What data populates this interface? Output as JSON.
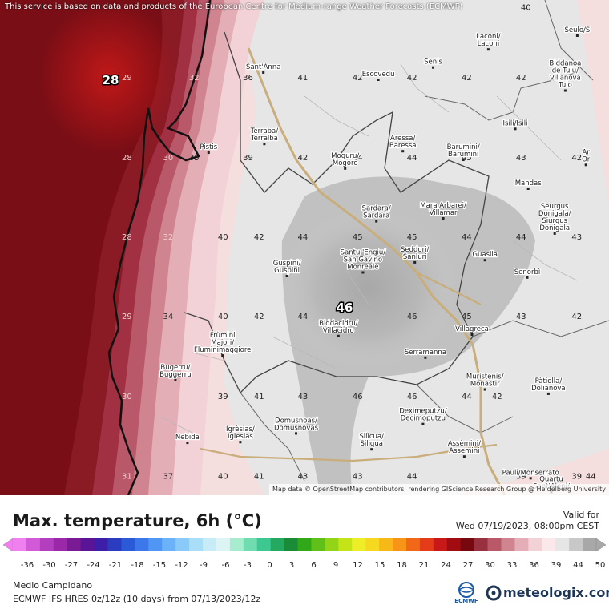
{
  "notice": "This service is based on data and products of the European Centre for Medium-range Weather Forecasts (ECMWF)",
  "attribution": "Map data © OpenStreetMap contributors, rendering GIScience Research Group @ Heidelberg University",
  "title": "Max. temperature, 6h (°C)",
  "valid_label": "Valid for",
  "valid_time": "Wed 07/19/2023, 08:00pm CEST",
  "region": "Medio Campidano",
  "model_info": "ECMWF IFS HRES 0z/12z (10 days) from 07/13/2023/12z",
  "ecmwf_logo_text": "ECMWF",
  "brand": "meteologix.com",
  "extremes": {
    "min_label": "28",
    "max_label": "46"
  },
  "places": [
    {
      "lines": [
        "Laconi/",
        "Laconi"
      ],
      "lon": 9.052,
      "lat": 39.855
    },
    {
      "lines": [
        "Seulo/S"
      ],
      "lon": 9.237,
      "lat": 39.869
    },
    {
      "lines": [
        "Senis"
      ],
      "lon": 8.937,
      "lat": 39.825
    },
    {
      "lines": [
        "Sant'Anna"
      ],
      "lon": 8.584,
      "lat": 39.818
    },
    {
      "lines": [
        "Escovedu"
      ],
      "lon": 8.823,
      "lat": 39.808
    },
    {
      "lines": [
        "Biddanoa",
        "de Tulu/",
        "Villanova",
        "Tulo"
      ],
      "lon": 9.212,
      "lat": 39.808
    },
    {
      "lines": [
        "Terraba/",
        "Terralba"
      ],
      "lon": 8.586,
      "lat": 39.724
    },
    {
      "lines": [
        "Isili/Isili"
      ],
      "lon": 9.108,
      "lat": 39.74
    },
    {
      "lines": [
        "Aressa/",
        "Baressa"
      ],
      "lon": 8.874,
      "lat": 39.714
    },
    {
      "lines": [
        "Barumini/",
        "Barumini"
      ],
      "lon": 9.0,
      "lat": 39.702
    },
    {
      "lines": [
        "Pistis"
      ],
      "lon": 8.47,
      "lat": 39.707
    },
    {
      "lines": [
        "Moguru/",
        "Mogoro"
      ],
      "lon": 8.754,
      "lat": 39.69
    },
    {
      "lines": [
        "Mandas"
      ],
      "lon": 9.135,
      "lat": 39.657
    },
    {
      "lines": [
        "Sardara/",
        "Sardara"
      ],
      "lon": 8.819,
      "lat": 39.617
    },
    {
      "lines": [
        "Mara Arbarei/",
        "Villamar"
      ],
      "lon": 8.958,
      "lat": 39.621
    },
    {
      "lines": [
        "Seurgus",
        "Donigala/",
        "Siurgus",
        "Donigala"
      ],
      "lon": 9.19,
      "lat": 39.61
    },
    {
      "lines": [
        "Seddori/",
        "Sanluri"
      ],
      "lon": 8.899,
      "lat": 39.56
    },
    {
      "lines": [
        "Santu 'Engiu/",
        "San Gavino",
        "Monreale"
      ],
      "lon": 8.791,
      "lat": 39.551
    },
    {
      "lines": [
        "Guspini/",
        "Guspini"
      ],
      "lon": 8.633,
      "lat": 39.541
    },
    {
      "lines": [
        "Guasila"
      ],
      "lon": 9.045,
      "lat": 39.558
    },
    {
      "lines": [
        "Senorbì"
      ],
      "lon": 9.133,
      "lat": 39.534
    },
    {
      "lines": [
        "Biddacidru/",
        "Villacidro"
      ],
      "lon": 8.74,
      "lat": 39.458
    },
    {
      "lines": [
        "Villagreca"
      ],
      "lon": 9.018,
      "lat": 39.455
    },
    {
      "lines": [
        "Frùmini",
        "Majori/",
        "Fluminimaggiore"
      ],
      "lon": 8.499,
      "lat": 39.436
    },
    {
      "lines": [
        "Serramanna"
      ],
      "lon": 8.921,
      "lat": 39.423
    },
    {
      "lines": [
        "Bugerru/",
        "Buggerru"
      ],
      "lon": 8.401,
      "lat": 39.397
    },
    {
      "lines": [
        "Muristenis/",
        "Monastir"
      ],
      "lon": 9.045,
      "lat": 39.384
    },
    {
      "lines": [
        "Pàtiolla/",
        "Dolianova"
      ],
      "lon": 9.177,
      "lat": 39.378
    },
    {
      "lines": [
        "Domusnoas/",
        "Domusnovas"
      ],
      "lon": 8.652,
      "lat": 39.323
    },
    {
      "lines": [
        "Deximeputzu/",
        "Decimoputzu"
      ],
      "lon": 8.916,
      "lat": 39.336
    },
    {
      "lines": [
        "Nebida"
      ],
      "lon": 8.426,
      "lat": 39.305
    },
    {
      "lines": [
        "Igrèsias/",
        "Iglesias"
      ],
      "lon": 8.536,
      "lat": 39.311
    },
    {
      "lines": [
        "Silìcua/",
        "Siliqua"
      ],
      "lon": 8.809,
      "lat": 39.301
    },
    {
      "lines": [
        "Assèmini/",
        "Assemini"
      ],
      "lon": 9.002,
      "lat": 39.291
    },
    {
      "lines": [
        "Quartu",
        "Sant'Aleni/"
      ],
      "lon": 9.183,
      "lat": 39.242
    },
    {
      "lines": [
        "Pauli/Monserrato"
      ],
      "lon": 9.14,
      "lat": 39.256
    },
    {
      "lines": [
        "Ar",
        "Or"
      ],
      "lon": 9.255,
      "lat": 39.695
    }
  ],
  "values": [
    {
      "v": "40",
      "lon": 9.13,
      "lat": 39.9,
      "light": false
    },
    {
      "v": "29",
      "lon": 8.3,
      "lat": 39.803,
      "light": true
    },
    {
      "v": "32",
      "lon": 8.44,
      "lat": 39.803,
      "light": true
    },
    {
      "v": "36",
      "lon": 8.552,
      "lat": 39.803,
      "light": false
    },
    {
      "v": "41",
      "lon": 8.666,
      "lat": 39.803,
      "light": false
    },
    {
      "v": "42",
      "lon": 8.78,
      "lat": 39.803,
      "light": false
    },
    {
      "v": "42",
      "lon": 8.893,
      "lat": 39.803,
      "light": false
    },
    {
      "v": "42",
      "lon": 9.007,
      "lat": 39.803,
      "light": false
    },
    {
      "v": "42",
      "lon": 9.12,
      "lat": 39.803,
      "light": false
    },
    {
      "v": "28",
      "lon": 8.3,
      "lat": 39.692,
      "light": true
    },
    {
      "v": "30",
      "lon": 8.386,
      "lat": 39.692,
      "light": true
    },
    {
      "v": "35",
      "lon": 8.44,
      "lat": 39.692,
      "light": false
    },
    {
      "v": "39",
      "lon": 8.552,
      "lat": 39.692,
      "light": false
    },
    {
      "v": "42",
      "lon": 8.666,
      "lat": 39.692,
      "light": false
    },
    {
      "v": "44",
      "lon": 8.78,
      "lat": 39.692,
      "light": false
    },
    {
      "v": "44",
      "lon": 8.893,
      "lat": 39.692,
      "light": false
    },
    {
      "v": "45",
      "lon": 9.007,
      "lat": 39.692,
      "light": false
    },
    {
      "v": "43",
      "lon": 9.12,
      "lat": 39.692,
      "light": false
    },
    {
      "v": "42",
      "lon": 9.236,
      "lat": 39.692,
      "light": false
    },
    {
      "v": "28",
      "lon": 8.3,
      "lat": 39.582,
      "light": true
    },
    {
      "v": "32",
      "lon": 8.386,
      "lat": 39.582,
      "light": true
    },
    {
      "v": "40",
      "lon": 8.5,
      "lat": 39.582,
      "light": false
    },
    {
      "v": "42",
      "lon": 8.575,
      "lat": 39.582,
      "light": false
    },
    {
      "v": "44",
      "lon": 8.666,
      "lat": 39.582,
      "light": false
    },
    {
      "v": "45",
      "lon": 8.78,
      "lat": 39.582,
      "light": false
    },
    {
      "v": "45",
      "lon": 8.893,
      "lat": 39.582,
      "light": false
    },
    {
      "v": "44",
      "lon": 9.007,
      "lat": 39.582,
      "light": false
    },
    {
      "v": "44",
      "lon": 9.12,
      "lat": 39.582,
      "light": false
    },
    {
      "v": "43",
      "lon": 9.236,
      "lat": 39.582,
      "light": false
    },
    {
      "v": "29",
      "lon": 8.3,
      "lat": 39.472,
      "light": true
    },
    {
      "v": "34",
      "lon": 8.386,
      "lat": 39.472,
      "light": false
    },
    {
      "v": "40",
      "lon": 8.5,
      "lat": 39.472,
      "light": false
    },
    {
      "v": "42",
      "lon": 8.575,
      "lat": 39.472,
      "light": false
    },
    {
      "v": "44",
      "lon": 8.666,
      "lat": 39.472,
      "light": false
    },
    {
      "v": "46",
      "lon": 8.893,
      "lat": 39.472,
      "light": false
    },
    {
      "v": "45",
      "lon": 9.007,
      "lat": 39.472,
      "light": false
    },
    {
      "v": "43",
      "lon": 9.12,
      "lat": 39.472,
      "light": false
    },
    {
      "v": "42",
      "lon": 9.236,
      "lat": 39.472,
      "light": false
    },
    {
      "v": "30",
      "lon": 8.3,
      "lat": 39.361,
      "light": true
    },
    {
      "v": "39",
      "lon": 8.5,
      "lat": 39.361,
      "light": false
    },
    {
      "v": "41",
      "lon": 8.575,
      "lat": 39.361,
      "light": false
    },
    {
      "v": "43",
      "lon": 8.666,
      "lat": 39.361,
      "light": false
    },
    {
      "v": "46",
      "lon": 8.78,
      "lat": 39.361,
      "light": false
    },
    {
      "v": "46",
      "lon": 8.893,
      "lat": 39.361,
      "light": false
    },
    {
      "v": "44",
      "lon": 9.007,
      "lat": 39.361,
      "light": false
    },
    {
      "v": "42",
      "lon": 9.07,
      "lat": 39.361,
      "light": false
    },
    {
      "v": "31",
      "lon": 8.3,
      "lat": 39.251,
      "light": true
    },
    {
      "v": "37",
      "lon": 8.386,
      "lat": 39.251,
      "light": false
    },
    {
      "v": "40",
      "lon": 8.5,
      "lat": 39.251,
      "light": false
    },
    {
      "v": "41",
      "lon": 8.575,
      "lat": 39.251,
      "light": false
    },
    {
      "v": "43",
      "lon": 8.666,
      "lat": 39.251,
      "light": false
    },
    {
      "v": "43",
      "lon": 8.78,
      "lat": 39.251,
      "light": false
    },
    {
      "v": "44",
      "lon": 8.893,
      "lat": 39.251,
      "light": false
    },
    {
      "v": "39",
      "lon": 9.12,
      "lat": 39.251,
      "light": false
    },
    {
      "v": "39",
      "lon": 9.236,
      "lat": 39.251,
      "light": false
    },
    {
      "v": "44",
      "lon": 9.265,
      "lat": 39.251,
      "light": false
    }
  ],
  "scale": {
    "ticks": [
      "-36",
      "-30",
      "-27",
      "-24",
      "-21",
      "-18",
      "-15",
      "-12",
      "-9",
      "-6",
      "-3",
      "0",
      "3",
      "6",
      "9",
      "12",
      "15",
      "18",
      "21",
      "24",
      "27",
      "30",
      "33",
      "36",
      "39",
      "44",
      "50"
    ],
    "colors": [
      "#f080f0",
      "#d25ad8",
      "#b43ec0",
      "#9a28a8",
      "#7a1a94",
      "#5a1496",
      "#3c1ea8",
      "#2a3cc0",
      "#2a5ad8",
      "#3c78ea",
      "#5096f4",
      "#6cb2f8",
      "#8acaf8",
      "#a8def8",
      "#c6ecf8",
      "#ddf4f4",
      "#a8ecd0",
      "#70dcb0",
      "#3cc890",
      "#24aa60",
      "#1a8c38",
      "#30a818",
      "#60c018",
      "#92d418",
      "#c4e418",
      "#eeee28",
      "#f6d820",
      "#f8b818",
      "#f89418",
      "#f06818",
      "#e43c18",
      "#c81818",
      "#a00c10",
      "#780810",
      "#983040",
      "#b85868",
      "#d08490",
      "#e4aeb6",
      "#f2d2d6",
      "#fae8ea",
      "#e6e6e6",
      "#c8c8c8",
      "#a8a8a8"
    ]
  }
}
